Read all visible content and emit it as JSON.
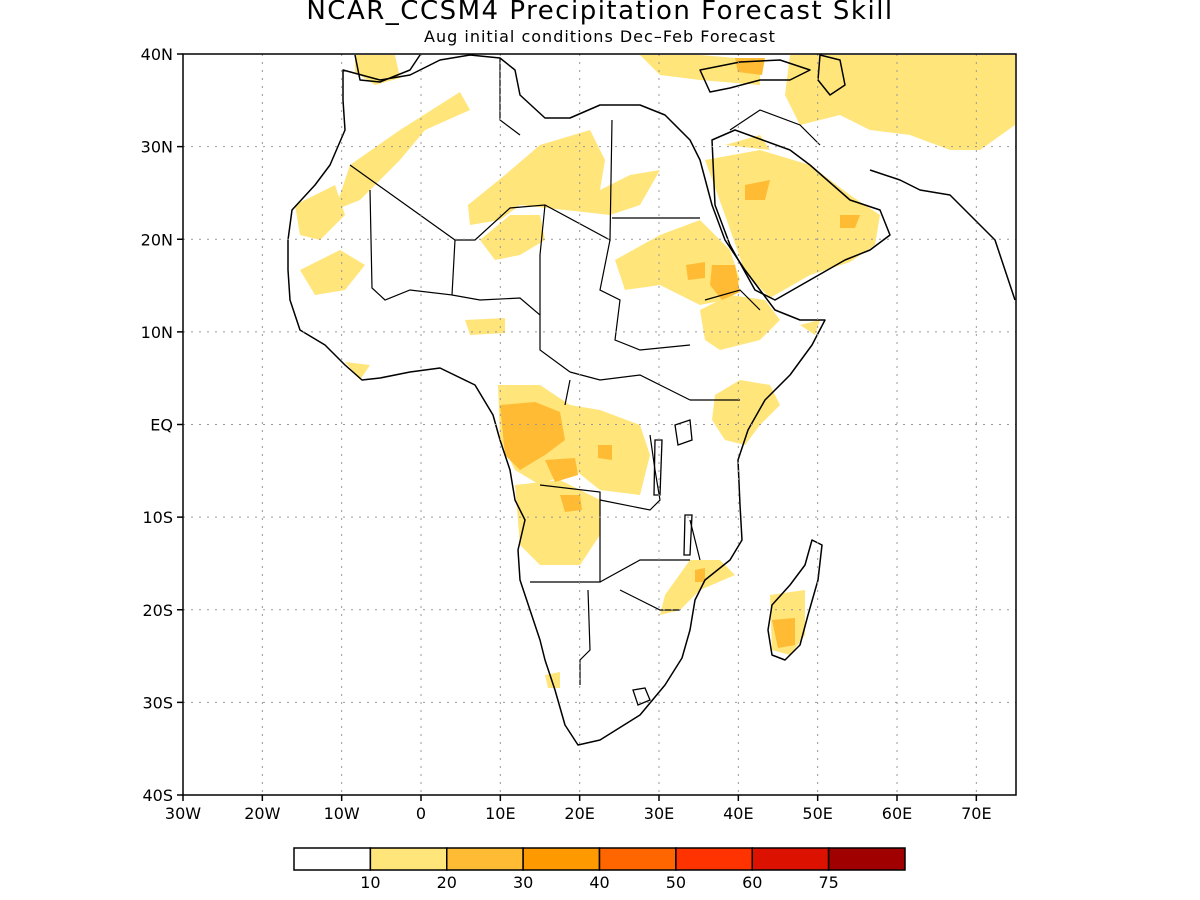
{
  "title": "NCAR_CCSM4 Precipitation Forecast Skill",
  "subtitle": "Aug initial conditions  Dec–Feb Forecast",
  "map": {
    "lon_range": [
      -30,
      75
    ],
    "lat_range": [
      -40,
      40
    ],
    "lat_labels": [
      "40N",
      "30N",
      "20N",
      "10N",
      "EQ",
      "10S",
      "20S",
      "30S",
      "40S"
    ],
    "lon_labels": [
      "30W",
      "20W",
      "10W",
      "0",
      "10E",
      "20E",
      "30E",
      "40E",
      "50E",
      "60E",
      "70E"
    ],
    "grid": "dotted"
  },
  "legend": {
    "tick_labels": [
      "10",
      "20",
      "30",
      "40",
      "50",
      "60",
      "75"
    ],
    "colors": [
      "#ffffff",
      "#ffe57a",
      "#ffbb33",
      "#ff9900",
      "#ff6600",
      "#ff3300",
      "#dd1100",
      "#a00000"
    ]
  }
}
